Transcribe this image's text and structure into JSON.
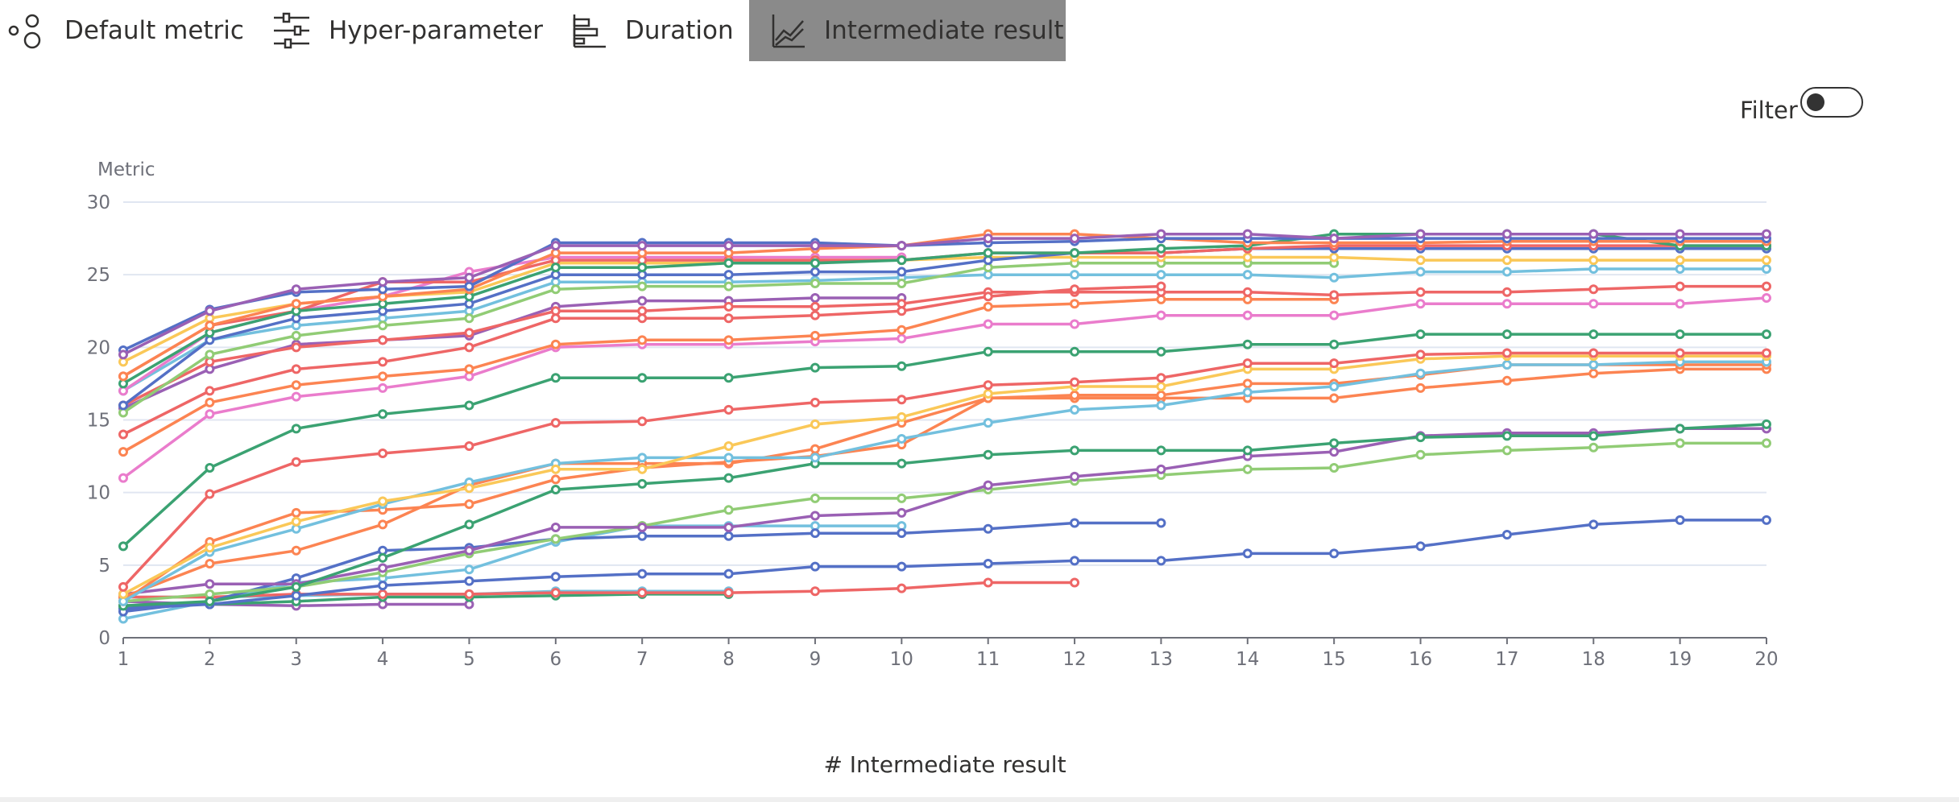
{
  "tabs": [
    {
      "label": "Default metric"
    },
    {
      "label": "Hyper-parameter"
    },
    {
      "label": "Duration"
    },
    {
      "label": "Intermediate result",
      "active": true
    }
  ],
  "filter": {
    "label": "Filter",
    "on": false
  },
  "chart_data": {
    "type": "line",
    "ylabel": "Metric",
    "xlabel": "# Intermediate result",
    "x": [
      1,
      2,
      3,
      4,
      5,
      6,
      7,
      8,
      9,
      10,
      11,
      12,
      13,
      14,
      15,
      16,
      17,
      18,
      19,
      20
    ],
    "xlim": [
      1,
      20
    ],
    "xticks": [
      1,
      2,
      3,
      4,
      5,
      6,
      7,
      8,
      9,
      10,
      11,
      12,
      13,
      14,
      15,
      16,
      17,
      18,
      19,
      20
    ],
    "ylim": [
      0,
      30
    ],
    "yticks": [
      0,
      5,
      10,
      15,
      20,
      25,
      30
    ],
    "grid": true,
    "series": [
      {
        "color": "#9a60b4",
        "values": [
          19.5,
          22.5,
          24,
          24.5,
          24.8,
          27,
          27,
          27,
          27,
          27,
          27.5,
          27.5,
          27.8,
          27.8,
          27.5,
          27.8,
          27.8,
          27.8,
          27.8,
          27.8
        ]
      },
      {
        "color": "#5470c6",
        "values": [
          19.8,
          22.6,
          23.8,
          24,
          24.2,
          27.2,
          27.2,
          27.2,
          27.2,
          27,
          27.2,
          27.3,
          27.5,
          27.5,
          27.5,
          27.5,
          27.5,
          27.5,
          27.5,
          27.5
        ]
      },
      {
        "color": "#fc8452",
        "values": [
          18,
          21.5,
          23,
          23.5,
          24,
          26.5,
          26.5,
          26.5,
          26.8,
          27,
          27.8,
          27.8,
          27.5,
          27.2,
          27.2,
          27.2,
          27.3,
          27.3,
          27.3,
          27.3
        ]
      },
      {
        "color": "#3ba272",
        "values": [
          17.5,
          21,
          22.5,
          23,
          23.5,
          25.5,
          25.5,
          25.8,
          25.8,
          26,
          26.5,
          26.5,
          26.8,
          27,
          27.8,
          27.8,
          27.8,
          27.8,
          27,
          27
        ]
      },
      {
        "color": "#ee6666",
        "values": [
          18,
          21.5,
          22.5,
          24.5,
          24.5,
          26,
          26,
          26,
          26,
          26,
          26.5,
          26.5,
          26.5,
          26.8,
          27,
          27,
          27,
          27,
          27,
          27
        ]
      },
      {
        "color": "#5470c6",
        "values": [
          16,
          20.5,
          22,
          22.5,
          23,
          25,
          25,
          25,
          25.2,
          25.2,
          26,
          26.5,
          26.5,
          26.8,
          26.8,
          26.8,
          26.8,
          26.8,
          26.8,
          26.8
        ]
      },
      {
        "color": "#fac858",
        "values": [
          19,
          22,
          23,
          23.5,
          23.8,
          25.8,
          25.8,
          25.8,
          26,
          26,
          26.2,
          26.2,
          26.2,
          26.2,
          26.2,
          26,
          26,
          26,
          26,
          26
        ]
      },
      {
        "color": "#ea7ccc",
        "values": [
          17,
          21,
          22.5,
          23.5,
          25.2,
          26.2,
          26.2,
          26.2,
          26.2,
          26.2,
          null,
          null,
          null,
          null,
          null,
          null,
          null,
          null,
          null,
          null
        ]
      },
      {
        "color": "#91cc75",
        "values": [
          15.5,
          19.5,
          20.8,
          21.5,
          22,
          24,
          24.2,
          24.2,
          24.4,
          24.4,
          25.5,
          25.8,
          25.8,
          25.8,
          25.8,
          null,
          null,
          null,
          null,
          null
        ]
      },
      {
        "color": "#73c0de",
        "values": [
          17,
          20.5,
          21.5,
          22,
          22.5,
          24.5,
          24.5,
          24.5,
          24.6,
          24.8,
          25,
          25,
          25,
          25,
          24.8,
          25.2,
          25.2,
          25.4,
          25.4,
          25.4
        ]
      },
      {
        "color": "#ee6666",
        "values": [
          14,
          17,
          18.5,
          19,
          20,
          22,
          22,
          22,
          22.2,
          22.5,
          23.5,
          24,
          24.2,
          null,
          null,
          null,
          null,
          null,
          null,
          null
        ]
      },
      {
        "color": "#ee6666",
        "values": [
          16,
          19,
          20,
          20.5,
          21,
          22.5,
          22.5,
          22.8,
          22.8,
          23,
          23.8,
          23.8,
          23.8,
          23.8,
          23.6,
          23.8,
          23.8,
          24,
          24.2,
          24.2
        ]
      },
      {
        "color": "#9a60b4",
        "values": [
          15.8,
          18.5,
          20.2,
          20.5,
          20.8,
          22.8,
          23.2,
          23.2,
          23.4,
          23.4,
          null,
          null,
          null,
          null,
          null,
          null,
          null,
          null,
          null,
          null
        ]
      },
      {
        "color": "#fc8452",
        "values": [
          12.8,
          16.2,
          17.4,
          18,
          18.5,
          20.2,
          20.5,
          20.5,
          20.8,
          21.2,
          22.8,
          23,
          23.3,
          23.3,
          23.3,
          null,
          null,
          null,
          null,
          null
        ]
      },
      {
        "color": "#ea7ccc",
        "values": [
          11,
          15.4,
          16.6,
          17.2,
          18,
          20,
          20.2,
          20.2,
          20.4,
          20.6,
          21.6,
          21.6,
          22.2,
          22.2,
          22.2,
          23,
          23,
          23,
          23,
          23.4
        ]
      },
      {
        "color": "#3ba272",
        "values": [
          6.3,
          11.7,
          14.4,
          15.4,
          16,
          17.9,
          17.9,
          17.9,
          18.6,
          18.7,
          19.7,
          19.7,
          19.7,
          20.2,
          20.2,
          20.9,
          20.9,
          20.9,
          20.9,
          20.9
        ]
      },
      {
        "color": "#ee6666",
        "values": [
          3.5,
          9.9,
          12.1,
          12.7,
          13.2,
          14.8,
          14.9,
          15.7,
          16.2,
          16.4,
          17.4,
          17.6,
          17.9,
          18.9,
          18.9,
          19.5,
          19.6,
          19.6,
          19.6,
          19.6
        ]
      },
      {
        "color": "#fac858",
        "values": [
          3,
          6.2,
          8,
          9.4,
          10.3,
          11.6,
          11.6,
          13.2,
          14.7,
          15.2,
          16.8,
          17.3,
          17.3,
          18.5,
          18.5,
          19.2,
          19.4,
          19.4,
          19.4,
          19.4
        ]
      },
      {
        "color": "#73c0de",
        "values": [
          2.5,
          5.9,
          7.5,
          9.2,
          10.7,
          12,
          12.4,
          12.4,
          12.4,
          13.7,
          14.8,
          15.7,
          16,
          16.9,
          17.3,
          18.2,
          18.8,
          18.8,
          19,
          19
        ]
      },
      {
        "color": "#fc8452",
        "values": [
          2.5,
          6.6,
          8.6,
          8.8,
          9.2,
          10.9,
          11.7,
          12.1,
          12.5,
          13.3,
          16.5,
          16.7,
          16.7,
          17.5,
          17.5,
          18.1,
          18.8,
          18.8,
          18.8,
          18.8
        ]
      },
      {
        "color": "#fc8452",
        "values": [
          2.8,
          5.1,
          6,
          7.8,
          10.5,
          12,
          12,
          12,
          13,
          14.8,
          16.5,
          16.5,
          16.5,
          16.5,
          16.5,
          17.2,
          17.7,
          18.2,
          18.5,
          18.5
        ]
      },
      {
        "color": "#3ba272",
        "values": [
          2.2,
          2.5,
          3.5,
          5.5,
          7.8,
          10.2,
          10.6,
          11,
          12,
          12,
          12.6,
          12.9,
          12.9,
          12.9,
          13.4,
          13.8,
          13.9,
          13.9,
          14.4,
          14.7
        ]
      },
      {
        "color": "#9a60b4",
        "values": [
          3,
          3.7,
          3.7,
          4.8,
          6,
          7.6,
          7.6,
          7.6,
          8.4,
          8.6,
          10.5,
          11.1,
          11.6,
          12.5,
          12.8,
          13.9,
          14.1,
          14.1,
          14.4,
          14.4
        ]
      },
      {
        "color": "#91cc75",
        "values": [
          2.5,
          3,
          3.5,
          4.5,
          5.8,
          6.8,
          7.7,
          8.8,
          9.6,
          9.6,
          10.2,
          10.8,
          11.2,
          11.6,
          11.7,
          12.6,
          12.9,
          13.1,
          13.4,
          13.4
        ]
      },
      {
        "color": "#5470c6",
        "values": [
          1.8,
          2.5,
          4.1,
          6,
          6.2,
          6.8,
          7,
          7,
          7.2,
          7.2,
          7.5,
          7.9,
          7.9,
          null,
          null,
          null,
          null,
          null,
          null,
          null
        ]
      },
      {
        "color": "#5470c6",
        "values": [
          2,
          2.3,
          2.9,
          3.6,
          3.9,
          4.2,
          4.4,
          4.4,
          4.9,
          4.9,
          5.1,
          5.3,
          5.3,
          5.8,
          5.8,
          6.3,
          7.1,
          7.8,
          8.1,
          8.1
        ]
      },
      {
        "color": "#73c0de",
        "values": [
          1.3,
          2.5,
          3.8,
          4.1,
          4.7,
          6.6,
          7.7,
          7.7,
          7.7,
          7.7,
          null,
          null,
          null,
          null,
          null,
          null,
          null,
          null,
          null,
          null
        ]
      },
      {
        "color": "#ee6666",
        "values": [
          2.8,
          2.8,
          3,
          3,
          3,
          3.1,
          3.1,
          3.1,
          3.2,
          3.4,
          3.8,
          3.8,
          null,
          null,
          null,
          null,
          null,
          null,
          null,
          null
        ]
      },
      {
        "color": "#3ba272",
        "values": [
          2.2,
          2.3,
          2.5,
          2.8,
          2.8,
          2.9,
          3,
          3,
          null,
          null,
          null,
          null,
          null,
          null,
          null,
          null,
          null,
          null,
          null,
          null
        ]
      },
      {
        "color": "#9a60b4",
        "values": [
          2.5,
          2.3,
          2.2,
          2.3,
          2.3,
          null,
          null,
          null,
          null,
          null,
          null,
          null,
          null,
          null,
          null,
          null,
          null,
          null,
          null,
          null
        ]
      },
      {
        "color": "#73c0de",
        "values": [
          2.8,
          2.8,
          2.9,
          3,
          3,
          3.2,
          3.2,
          3.2,
          null,
          null,
          null,
          null,
          null,
          null,
          null,
          null,
          null,
          null,
          null,
          null
        ]
      }
    ]
  }
}
